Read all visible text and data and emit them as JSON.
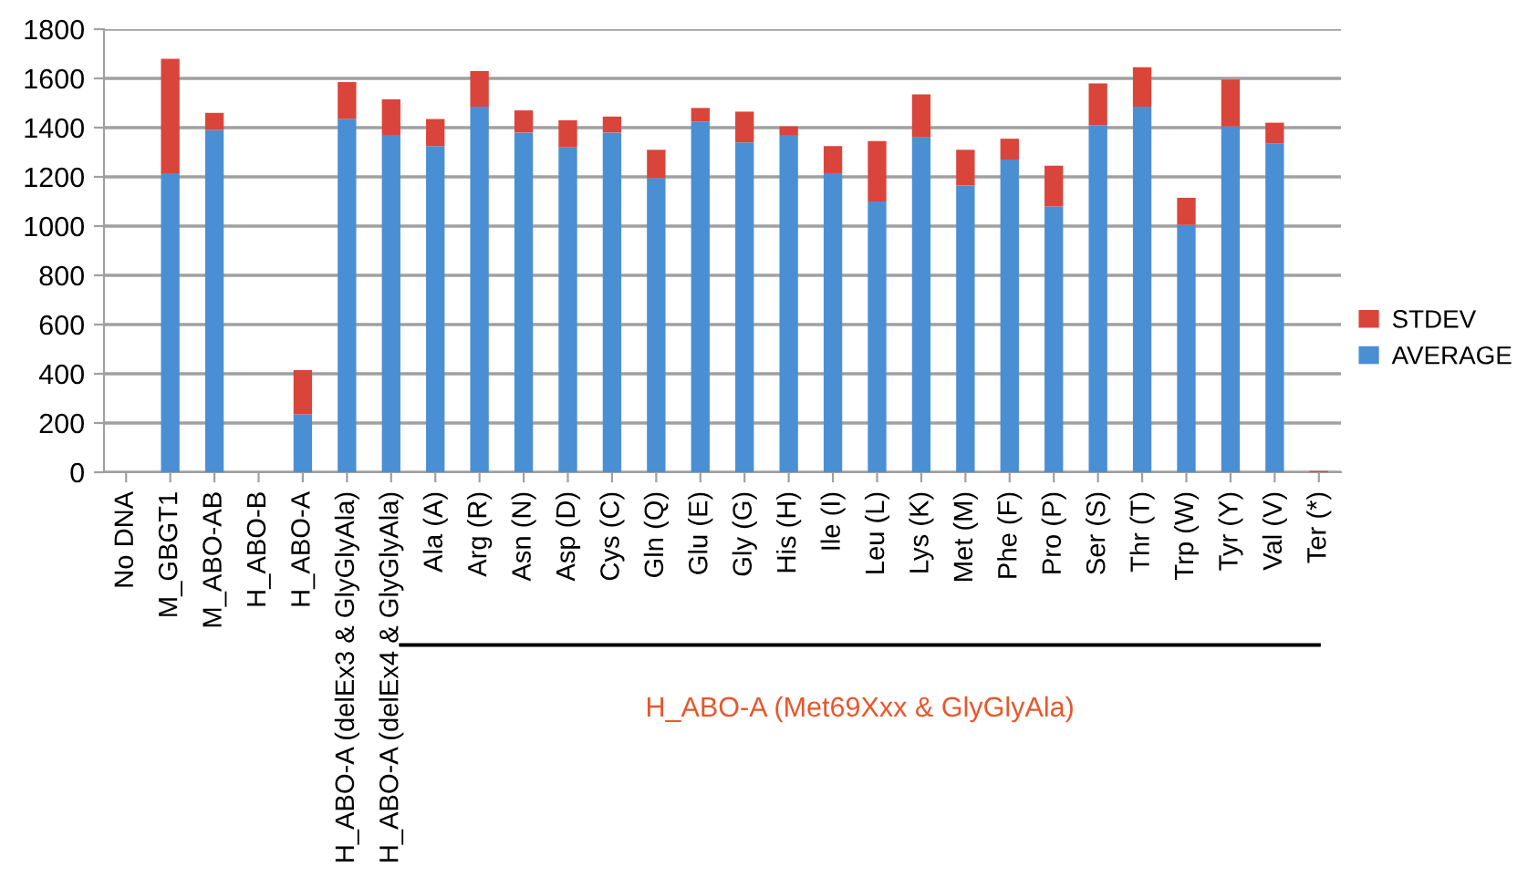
{
  "chart_data": {
    "type": "bar",
    "stacked": true,
    "categories": [
      "No DNA",
      "M_GBGT1",
      "M_ABO-AB",
      "H_ABO-B",
      "H_ABO-A",
      "H_ABO-A (delEx3 & GlyGlyAla)",
      "H_ABO-A (delEx4 & GlyGlyAla)",
      "Ala (A)",
      "Arg (R)",
      "Asn (N)",
      "Asp (D)",
      "Cys (C)",
      "Gln (Q)",
      "Glu (E)",
      "Gly (G)",
      "His (H)",
      "Ile (I)",
      "Leu (L)",
      "Lys (K)",
      "Met (M)",
      "Phe (F)",
      "Pro (P)",
      "Ser (S)",
      "Thr (T)",
      "Trp (W)",
      "Tyr (Y)",
      "Val (V)",
      "Ter (*)"
    ],
    "series": [
      {
        "name": "AVERAGE",
        "color": "#4a8fd4",
        "values": [
          0,
          1215,
          1390,
          0,
          235,
          1435,
          1370,
          1325,
          1485,
          1380,
          1320,
          1380,
          1195,
          1425,
          1340,
          1370,
          1215,
          1100,
          1360,
          1165,
          1270,
          1080,
          1410,
          1485,
          1005,
          1405,
          1335,
          0
        ]
      },
      {
        "name": "STDEV",
        "color": "#d9453a",
        "values": [
          0,
          465,
          70,
          0,
          180,
          150,
          145,
          110,
          145,
          90,
          110,
          65,
          115,
          55,
          125,
          35,
          110,
          245,
          175,
          145,
          85,
          165,
          170,
          160,
          110,
          190,
          85,
          5
        ]
      }
    ],
    "ylim": [
      0,
      1800
    ],
    "yticks": [
      0,
      200,
      400,
      600,
      800,
      1000,
      1200,
      1400,
      1600,
      1800
    ],
    "grid": "y",
    "legend": "right",
    "annotations": [
      "H_ABO-A (Met69Xxx & GlyGlyAla)"
    ]
  }
}
